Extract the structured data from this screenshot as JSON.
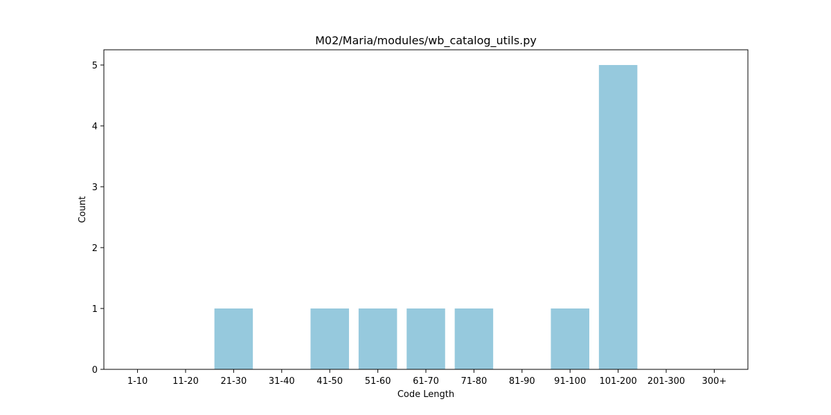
{
  "chart_data": {
    "type": "bar",
    "title": "M02/Maria/modules/wb_catalog_utils.py",
    "xlabel": "Code Length",
    "ylabel": "Count",
    "categories": [
      "1-10",
      "11-20",
      "21-30",
      "31-40",
      "41-50",
      "51-60",
      "61-70",
      "71-80",
      "81-90",
      "91-100",
      "101-200",
      "201-300",
      "300+"
    ],
    "values": [
      0,
      0,
      1,
      0,
      1,
      1,
      1,
      1,
      0,
      1,
      5,
      0,
      0
    ],
    "ylim": [
      0,
      5.25
    ],
    "yticks": [
      "0",
      "1",
      "2",
      "3",
      "4",
      "5"
    ],
    "bar_color": "#96c9dd",
    "grid": false,
    "legend": "none"
  }
}
